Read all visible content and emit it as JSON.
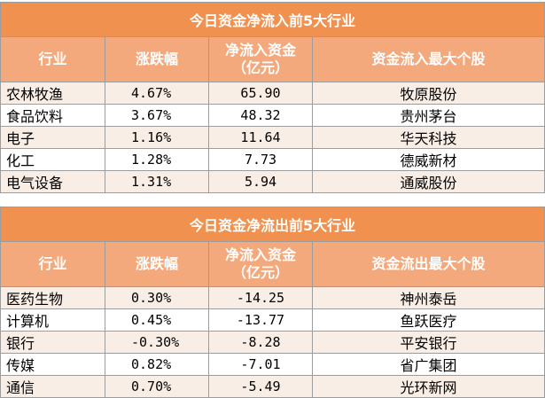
{
  "inflow": {
    "title": "今日资金净流入前5大行业",
    "headers": [
      "行业",
      "涨跌幅",
      "净流入资金\n（亿元）",
      "资金流入最大个股"
    ],
    "rows": [
      {
        "industry": "农林牧渔",
        "change": "4.67%",
        "flow": "65.90",
        "stock": "牧原股份"
      },
      {
        "industry": "食品饮料",
        "change": "3.67%",
        "flow": "48.32",
        "stock": "贵州茅台"
      },
      {
        "industry": "电子",
        "change": "1.16%",
        "flow": "11.64",
        "stock": "华天科技"
      },
      {
        "industry": "化工",
        "change": "1.28%",
        "flow": "7.73",
        "stock": "德威新材"
      },
      {
        "industry": "电气设备",
        "change": "1.31%",
        "flow": "5.94",
        "stock": "通威股份"
      }
    ]
  },
  "outflow": {
    "title": "今日资金净流出前5大行业",
    "headers": [
      "行业",
      "涨跌幅",
      "净流入资金\n（亿元）",
      "资金流出最大个股"
    ],
    "rows": [
      {
        "industry": "医药生物",
        "change": "0.30%",
        "flow": "-14.25",
        "stock": "神州泰岳"
      },
      {
        "industry": "计算机",
        "change": "0.45%",
        "flow": "-13.77",
        "stock": "鱼跃医疗"
      },
      {
        "industry": "银行",
        "change": "-0.30%",
        "flow": "-8.28",
        "stock": "平安银行"
      },
      {
        "industry": "传媒",
        "change": "0.82%",
        "flow": "-7.01",
        "stock": "省广集团"
      },
      {
        "industry": "通信",
        "change": "0.70%",
        "flow": "-5.49",
        "stock": "光环新网"
      }
    ]
  },
  "colors": {
    "title_bg": "#f0914f",
    "header_bg": "#f4a97c",
    "odd_row_bg": "#f9eee5",
    "even_row_bg": "#ffffff",
    "border": "#9c9c9c"
  }
}
